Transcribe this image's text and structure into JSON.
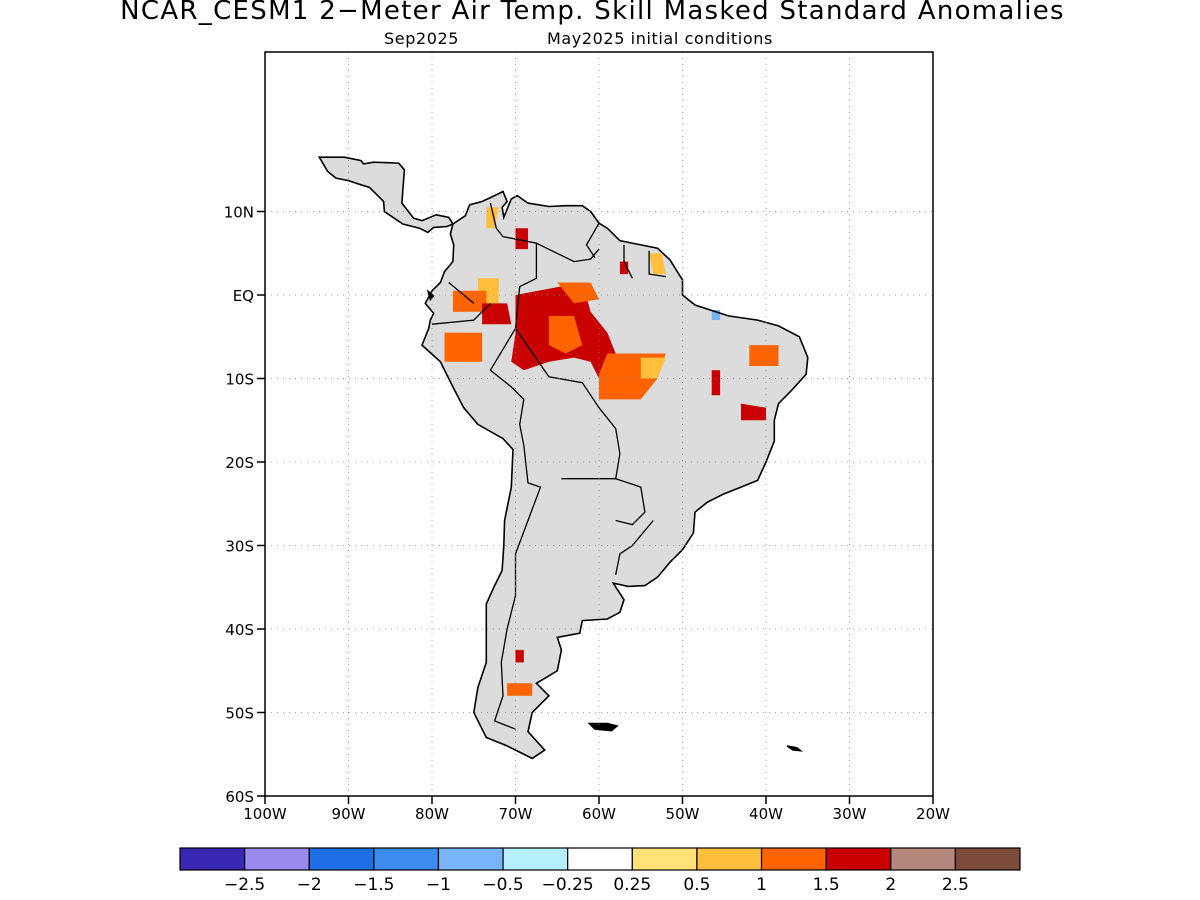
{
  "title": "NCAR_CESM1 2−Meter Air Temp. Skill Masked Standard Anomalies",
  "subtitle_month": "Sep2025",
  "subtitle_ic": "May2025 initial conditions",
  "map": {
    "lon_range": [
      -100,
      -20
    ],
    "lat_range": [
      -60,
      16
    ],
    "lat_ticks": [
      {
        "value": 10,
        "label": "10N"
      },
      {
        "value": 0,
        "label": "EQ"
      },
      {
        "value": -10,
        "label": "10S"
      },
      {
        "value": -20,
        "label": "20S"
      },
      {
        "value": -30,
        "label": "30S"
      },
      {
        "value": -40,
        "label": "40S"
      },
      {
        "value": -50,
        "label": "50S"
      },
      {
        "value": -60,
        "label": "60S"
      }
    ],
    "lon_ticks": [
      {
        "value": -100,
        "label": "100W"
      },
      {
        "value": -90,
        "label": "90W"
      },
      {
        "value": -80,
        "label": "80W"
      },
      {
        "value": -70,
        "label": "70W"
      },
      {
        "value": -60,
        "label": "60W"
      },
      {
        "value": -50,
        "label": "50W"
      },
      {
        "value": -40,
        "label": "40W"
      },
      {
        "value": -30,
        "label": "30W"
      },
      {
        "value": -20,
        "label": "20W"
      }
    ],
    "grid": true,
    "masked_color": "#dcdcdc",
    "coast_color": "#000000"
  },
  "colorbar": {
    "colors": [
      "#3a28b4",
      "#9a8af0",
      "#1e6ee6",
      "#3c8cf0",
      "#78b4f8",
      "#b4f0fa",
      "#ffffff",
      "#ffe178",
      "#ffbe3c",
      "#ff6400",
      "#c80000",
      "#b4877d",
      "#7d4b3c"
    ],
    "labels": [
      "−2.5",
      "−2",
      "−1.5",
      "−1",
      "−0.5",
      "−0.25",
      "0.25",
      "0.5",
      "1",
      "1.5",
      "2",
      "2.5"
    ]
  },
  "anomaly_regions": [
    {
      "category": "1",
      "color": "#ffbe3c",
      "points": [
        [
          -73.5,
          10.5
        ],
        [
          -72,
          10.5
        ],
        [
          -72.5,
          8
        ],
        [
          -73.5,
          8
        ]
      ]
    },
    {
      "category": "1",
      "color": "#ffbe3c",
      "points": [
        [
          -74.5,
          2
        ],
        [
          -72,
          2
        ],
        [
          -72,
          -1
        ],
        [
          -74.5,
          -1
        ]
      ]
    },
    {
      "category": "1.5",
      "color": "#ff6400",
      "points": [
        [
          -77.5,
          0.5
        ],
        [
          -73.5,
          0.5
        ],
        [
          -73.5,
          -2
        ],
        [
          -77.5,
          -2
        ]
      ]
    },
    {
      "category": "1.5",
      "color": "#ff6400",
      "points": [
        [
          -78.5,
          -4.5
        ],
        [
          -74,
          -4.5
        ],
        [
          -74,
          -8
        ],
        [
          -78.5,
          -8
        ]
      ]
    },
    {
      "category": "2",
      "color": "#c80000",
      "points": [
        [
          -74,
          -1
        ],
        [
          -71,
          -1
        ],
        [
          -70.5,
          -3.5
        ],
        [
          -74,
          -3.5
        ]
      ]
    },
    {
      "category": "2",
      "color": "#c80000",
      "points": [
        [
          -70,
          8
        ],
        [
          -68.5,
          8
        ],
        [
          -68.5,
          5.5
        ],
        [
          -70,
          5.5
        ]
      ]
    },
    {
      "category": "2",
      "color": "#c80000",
      "points": [
        [
          -70,
          0
        ],
        [
          -62,
          1.5
        ],
        [
          -61,
          -2
        ],
        [
          -59,
          -4.5
        ],
        [
          -58,
          -7
        ],
        [
          -58,
          -10
        ],
        [
          -60,
          -10
        ],
        [
          -61,
          -8
        ],
        [
          -63,
          -7.5
        ],
        [
          -66,
          -8
        ],
        [
          -69,
          -9
        ],
        [
          -70.5,
          -8
        ],
        [
          -70,
          -4.5
        ]
      ]
    },
    {
      "category": "1.5",
      "color": "#ff6400",
      "points": [
        [
          -66,
          -2.5
        ],
        [
          -63,
          -2.5
        ],
        [
          -62,
          -6
        ],
        [
          -64,
          -7
        ],
        [
          -66,
          -6
        ]
      ]
    },
    {
      "category": "1.5",
      "color": "#ff6400",
      "points": [
        [
          -65,
          1.5
        ],
        [
          -61,
          1.5
        ],
        [
          -60,
          -0.5
        ],
        [
          -63,
          -1
        ]
      ]
    },
    {
      "category": "1.5",
      "color": "#ff6400",
      "points": [
        [
          -59,
          -7
        ],
        [
          -52,
          -7
        ],
        [
          -53,
          -10
        ],
        [
          -55,
          -12.5
        ],
        [
          -60,
          -12.5
        ],
        [
          -60,
          -9.5
        ]
      ]
    },
    {
      "category": "1",
      "color": "#ffbe3c",
      "points": [
        [
          -55,
          -7.5
        ],
        [
          -52,
          -7.5
        ],
        [
          -53,
          -10
        ],
        [
          -55,
          -10
        ]
      ]
    },
    {
      "category": "2",
      "color": "#c80000",
      "points": [
        [
          -57.5,
          4
        ],
        [
          -56.5,
          4
        ],
        [
          -56.5,
          2.5
        ],
        [
          -57.5,
          2.5
        ]
      ]
    },
    {
      "category": "1",
      "color": "#ffbe3c",
      "points": [
        [
          -54,
          5
        ],
        [
          -52.5,
          5
        ],
        [
          -52,
          2.5
        ],
        [
          -53.5,
          2.5
        ]
      ]
    },
    {
      "category": "1.5",
      "color": "#ff6400",
      "points": [
        [
          -42,
          -6
        ],
        [
          -38.5,
          -6
        ],
        [
          -38.5,
          -8.5
        ],
        [
          -42,
          -8.5
        ]
      ]
    },
    {
      "category": "2",
      "color": "#c80000",
      "points": [
        [
          -46.5,
          -9
        ],
        [
          -45.5,
          -9
        ],
        [
          -45.5,
          -12
        ],
        [
          -46.5,
          -12
        ]
      ]
    },
    {
      "category": "2",
      "color": "#c80000",
      "points": [
        [
          -43,
          -13
        ],
        [
          -40,
          -13.5
        ],
        [
          -40,
          -15
        ],
        [
          -43,
          -15
        ]
      ]
    },
    {
      "category": "2",
      "color": "#c80000",
      "points": [
        [
          -70,
          -42.5
        ],
        [
          -69,
          -42.5
        ],
        [
          -69,
          -44
        ],
        [
          -70,
          -44
        ]
      ]
    },
    {
      "category": "1.5",
      "color": "#ff6400",
      "points": [
        [
          -71,
          -46.5
        ],
        [
          -68,
          -46.5
        ],
        [
          -68,
          -48
        ],
        [
          -71,
          -48
        ]
      ]
    },
    {
      "category": "-0.5",
      "color": "#78b4f8",
      "points": [
        [
          -46.5,
          -1.8
        ],
        [
          -45.5,
          -1.8
        ],
        [
          -45.5,
          -3
        ],
        [
          -46.5,
          -3
        ]
      ]
    }
  ]
}
